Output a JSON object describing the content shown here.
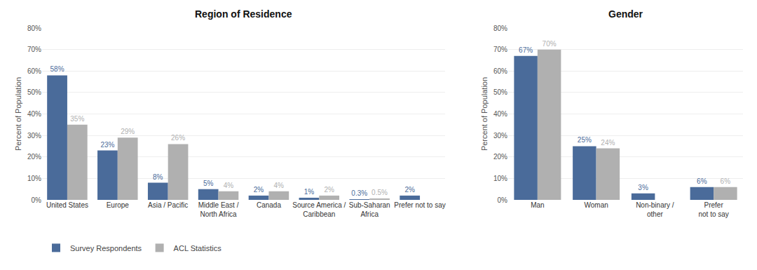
{
  "chart_data": [
    {
      "type": "bar",
      "title": "Region of Residence",
      "ylabel": "Percent of Population",
      "categories": [
        "United States",
        "Europe",
        "Asia / Pacific",
        "Middle East /\nNorth Africa",
        "Canada",
        "Source America /\nCaribbean",
        "Sub-Saharan\nAfrica",
        "Prefer not to say"
      ],
      "series": [
        {
          "name": "Survey Respondents",
          "color": "#4a6b9a",
          "values": [
            58,
            23,
            8,
            5,
            2,
            1,
            0.3,
            2
          ],
          "value_labels": [
            "58%",
            "23%",
            "8%",
            "5%",
            "2%",
            "1%",
            "0.3%",
            "2%"
          ]
        },
        {
          "name": "ACL Statistics",
          "color": "#b0b0b0",
          "values": [
            35,
            29,
            26,
            4,
            4,
            2,
            0.5,
            0
          ],
          "value_labels": [
            "35%",
            "29%",
            "26%",
            "4%",
            "4%",
            "2%",
            "0.5%",
            null
          ]
        }
      ],
      "ylim": [
        0,
        80
      ],
      "yticks": [
        {
          "value": 0,
          "label": "0%"
        },
        {
          "value": 10,
          "label": "10%"
        },
        {
          "value": 20,
          "label": "20%"
        },
        {
          "value": 30,
          "label": "30%"
        },
        {
          "value": 40,
          "label": "40%"
        },
        {
          "value": 50,
          "label": "50%"
        },
        {
          "value": 60,
          "label": "60%"
        },
        {
          "value": 70,
          "label": "70%"
        },
        {
          "value": 80,
          "label": "80%"
        }
      ],
      "grid": true,
      "data_labels": true,
      "legend": "lower left"
    },
    {
      "type": "bar",
      "title": "Gender",
      "ylabel": "Percent of Population",
      "categories": [
        "Man",
        "Woman",
        "Non-binary /\nother",
        "Prefer\nnot to say"
      ],
      "series": [
        {
          "name": "Survey Respondents",
          "color": "#4a6b9a",
          "values": [
            67,
            25,
            3,
            6
          ],
          "value_labels": [
            "67%",
            "25%",
            "3%",
            "6%"
          ]
        },
        {
          "name": "ACL Statistics",
          "color": "#b0b0b0",
          "values": [
            70,
            24,
            0,
            6
          ],
          "value_labels": [
            "70%",
            "24%",
            null,
            "6%"
          ]
        }
      ],
      "ylim": [
        0,
        80
      ],
      "yticks": [
        {
          "value": 0,
          "label": "0%"
        },
        {
          "value": 10,
          "label": "10%"
        },
        {
          "value": 20,
          "label": "20%"
        },
        {
          "value": 30,
          "label": "30%"
        },
        {
          "value": 40,
          "label": "40%"
        },
        {
          "value": 50,
          "label": "50%"
        },
        {
          "value": 60,
          "label": "60%"
        },
        {
          "value": 70,
          "label": "70%"
        },
        {
          "value": 80,
          "label": "80%"
        }
      ],
      "grid": true,
      "data_labels": true
    }
  ]
}
